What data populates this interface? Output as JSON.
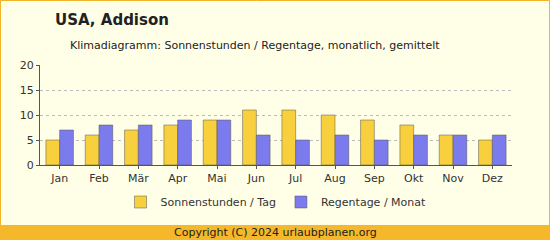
{
  "chart_data": {
    "type": "bar",
    "title": "USA, Addison",
    "subtitle": "Klimadiagramm: Sonnenstunden / Regentage, monatlich, gemittelt",
    "categories": [
      "Jan",
      "Feb",
      "Mär",
      "Apr",
      "Mai",
      "Jun",
      "Jul",
      "Aug",
      "Sep",
      "Okt",
      "Nov",
      "Dez"
    ],
    "series": [
      {
        "name": "Sonnenstunden / Tag",
        "color": "#f8cf3c",
        "values": [
          5,
          6,
          7,
          8,
          9,
          11,
          11,
          10,
          9,
          8,
          6,
          5
        ]
      },
      {
        "name": "Regentage / Monat",
        "color": "#7b7bee",
        "values": [
          7,
          8,
          8,
          9,
          9,
          6,
          5,
          6,
          5,
          6,
          6,
          6
        ]
      }
    ],
    "ylim": [
      0,
      20
    ],
    "yticks": [
      0,
      5,
      10,
      15,
      20
    ],
    "grid": true,
    "legend": "bottom",
    "annotations": [
      "Copyright (C) 2024 urlaubplanen.org"
    ]
  }
}
